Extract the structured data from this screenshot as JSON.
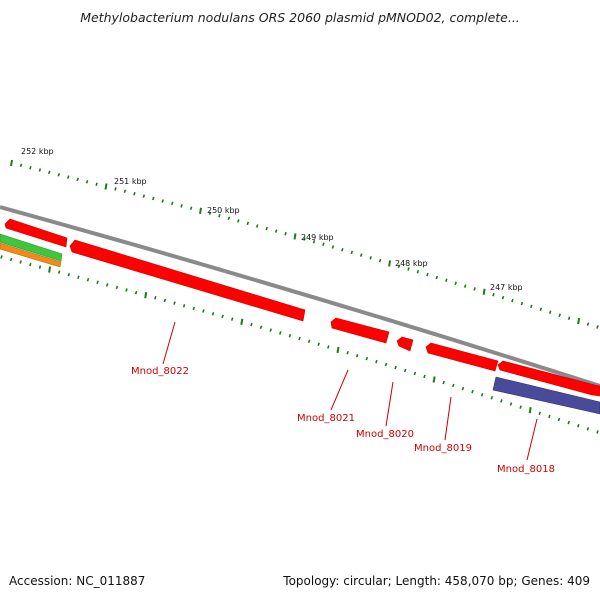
{
  "header": {
    "title": "Methylobacterium nodulans ORS 2060 plasmid pMNOD02, complete..."
  },
  "footer": {
    "accession": "Accession: NC_011887",
    "stats": "Topology: circular; Length: 458,070 bp; Genes: 409"
  },
  "scale": {
    "labels": [
      "252 kbp",
      "251 kbp",
      "250 kbp",
      "249 kbp",
      "248 kbp",
      "247 kbp"
    ]
  },
  "colors": {
    "backbone": "#8a8a8a",
    "gene": "#ff0000",
    "gene_dark": "#cc0000",
    "gene_light": "#ff6666",
    "tick": "#1d7a1d",
    "label": "#cc0000",
    "track_green": "#3fc63f",
    "track_orange": "#f08a1a",
    "track_purple": "#4a4a9a"
  },
  "genes": [
    {
      "name": "Mnod_8022"
    },
    {
      "name": "Mnod_8021"
    },
    {
      "name": "Mnod_8020"
    },
    {
      "name": "Mnod_8019"
    },
    {
      "name": "Mnod_8018"
    }
  ]
}
